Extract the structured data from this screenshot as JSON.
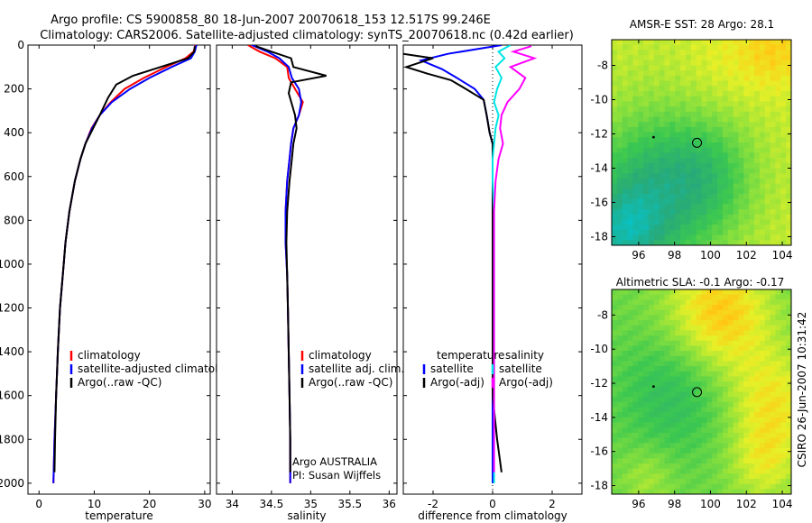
{
  "header": {
    "title_line1": "Argo profile: CS 5900858_80 18-Jun-2007 20070618_153 12.517S 99.246E",
    "title_line2": "Climatology: CARS2006. Satellite-adjusted climatology: synTS_20070618.nc (0.42d earlier)"
  },
  "side_label": "CSIRO 26-Jun-2007 10:31:42",
  "colors": {
    "climatology": "#ff0000",
    "satellite": "#0000ff",
    "argo": "#000000",
    "salinity_satellite": "#00e5e5",
    "salinity_argo": "#ff00ff"
  },
  "chart_data": [
    {
      "type": "line",
      "id": "temperature",
      "xlabel": "temperature",
      "ylabel": "",
      "xlim": [
        -2,
        31
      ],
      "ylim": [
        2050,
        0
      ],
      "xticks": [
        0,
        10,
        20,
        30
      ],
      "yticks": [
        0,
        200,
        400,
        600,
        800,
        1000,
        1200,
        1400,
        1600,
        1800,
        2000
      ],
      "legend": [
        "climatology",
        "satellite-adjusted climatology",
        "Argo(..raw -QC)"
      ],
      "series": [
        {
          "name": "climatology",
          "color": "#ff0000",
          "x": [
            28.3,
            28.0,
            26.5,
            23.0,
            19.0,
            15.5,
            13.0,
            11.0,
            9.5,
            8.4,
            7.5,
            6.5,
            5.5,
            4.8,
            4.3,
            3.8,
            3.4,
            3.1,
            2.8,
            2.6
          ],
          "y": [
            0,
            30,
            60,
            100,
            150,
            200,
            260,
            320,
            380,
            450,
            520,
            620,
            760,
            900,
            1050,
            1200,
            1400,
            1600,
            1800,
            2000
          ]
        },
        {
          "name": "satellite-adjusted climatology",
          "color": "#0000ff",
          "x": [
            28.5,
            28.2,
            27.5,
            24.0,
            20.0,
            16.5,
            13.2,
            11.0,
            9.6,
            8.4,
            7.5,
            6.5,
            5.5,
            4.8,
            4.3,
            3.8,
            3.4,
            3.1,
            2.8,
            2.6
          ],
          "y": [
            0,
            30,
            60,
            100,
            150,
            200,
            260,
            320,
            380,
            450,
            520,
            620,
            760,
            900,
            1050,
            1200,
            1400,
            1600,
            1800,
            2000
          ]
        },
        {
          "name": "Argo(..raw -QC)",
          "color": "#000000",
          "x": [
            28.2,
            28.1,
            27.0,
            22.0,
            17.0,
            14.0,
            12.5,
            11.0,
            9.8,
            8.4,
            7.5,
            6.5,
            5.5,
            4.8,
            4.3,
            3.8,
            3.4,
            3.1,
            2.9,
            2.8
          ],
          "y": [
            5,
            30,
            60,
            100,
            140,
            180,
            240,
            320,
            380,
            450,
            520,
            620,
            760,
            900,
            1050,
            1200,
            1400,
            1600,
            1800,
            1950
          ]
        }
      ]
    },
    {
      "type": "line",
      "id": "salinity",
      "xlabel": "salinity",
      "ylabel": "",
      "xlim": [
        33.8,
        36.1
      ],
      "ylim": [
        2050,
        0
      ],
      "xticks": [
        34,
        34.5,
        35,
        35.5,
        36
      ],
      "legend": [
        "climatology",
        "satellite adj. clim.",
        "Argo(..raw -QC)"
      ],
      "annotations": [
        "Argo AUSTRALIA",
        "PI: Susan Wijffels"
      ],
      "series": [
        {
          "name": "climatology",
          "color": "#ff0000",
          "x": [
            34.2,
            34.35,
            34.55,
            34.7,
            34.72,
            34.8,
            34.9,
            34.85,
            34.78,
            34.75,
            34.73,
            34.7,
            34.68,
            34.68,
            34.7,
            34.71,
            34.72,
            34.73,
            34.74,
            34.74
          ],
          "y": [
            0,
            30,
            60,
            100,
            150,
            200,
            260,
            320,
            380,
            450,
            520,
            620,
            760,
            900,
            1050,
            1200,
            1400,
            1600,
            1800,
            2000
          ]
        },
        {
          "name": "satellite adj. clim.",
          "color": "#0000ff",
          "x": [
            34.25,
            34.45,
            34.6,
            34.72,
            34.76,
            34.85,
            34.88,
            34.85,
            34.78,
            34.75,
            34.73,
            34.7,
            34.68,
            34.68,
            34.7,
            34.71,
            34.72,
            34.73,
            34.74,
            34.74
          ],
          "y": [
            0,
            30,
            60,
            100,
            150,
            200,
            260,
            320,
            380,
            450,
            520,
            620,
            760,
            900,
            1050,
            1200,
            1400,
            1600,
            1800,
            2000
          ]
        },
        {
          "name": "Argo(..raw -QC)",
          "color": "#000000",
          "x": [
            34.3,
            34.5,
            34.75,
            34.78,
            35.2,
            34.75,
            34.72,
            34.8,
            34.82,
            34.78,
            34.76,
            34.73,
            34.7,
            34.69,
            34.7,
            34.71,
            34.72,
            34.73,
            34.74,
            34.74
          ],
          "y": [
            5,
            30,
            60,
            100,
            140,
            170,
            220,
            320,
            380,
            450,
            520,
            620,
            760,
            900,
            1050,
            1200,
            1400,
            1600,
            1800,
            1950
          ]
        }
      ]
    },
    {
      "type": "line",
      "id": "difference",
      "xlabel": "difference from climatology",
      "ylabel": "",
      "xlim": [
        -3,
        3
      ],
      "ylim": [
        2050,
        0
      ],
      "xticks": [
        -2,
        0,
        2
      ],
      "legend": [
        "temperature",
        "satellite",
        "Argo(-adj)",
        "salinity",
        "satellite",
        "Argo(-adj)"
      ],
      "series": [
        {
          "name": "temperature satellite",
          "color": "#0000ff",
          "x": [
            0.3,
            -1.5,
            -2.4,
            -1.7,
            -1.2,
            -0.6,
            -0.3,
            -0.2,
            -0.1,
            0.0,
            0.0,
            0.0,
            0.0,
            0.0,
            0.0,
            0.0,
            0.0,
            0.0,
            0.0,
            0.0
          ],
          "y": [
            0,
            40,
            70,
            110,
            150,
            200,
            250,
            320,
            400,
            450,
            520,
            620,
            760,
            900,
            1050,
            1200,
            1400,
            1600,
            1800,
            2000
          ]
        },
        {
          "name": "temperature Argo(-adj)",
          "color": "#000000",
          "x": [
            -3.0,
            -2.0,
            -2.9,
            -2.2,
            -1.4,
            -0.9,
            -0.3,
            -0.2,
            -0.1,
            0.0,
            0.0,
            0.0,
            0.0,
            0.0,
            0.0,
            0.0,
            0.0,
            0.0,
            0.15,
            0.3
          ],
          "y": [
            40,
            60,
            100,
            130,
            160,
            200,
            250,
            320,
            400,
            450,
            520,
            620,
            760,
            900,
            1050,
            1200,
            1400,
            1600,
            1800,
            1950
          ]
        },
        {
          "name": "salinity satellite",
          "color": "#00e5e5",
          "x": [
            0.6,
            0.2,
            0.4,
            0.1,
            0.3,
            0.15,
            0.05,
            0.2,
            0.1,
            0.05,
            0.0,
            0.0,
            0.05,
            0.05,
            0.05,
            0.05,
            0.05,
            0.05,
            0.05,
            0.05
          ],
          "y": [
            0,
            30,
            60,
            100,
            150,
            200,
            260,
            320,
            380,
            450,
            520,
            620,
            760,
            900,
            1050,
            1200,
            1400,
            1600,
            1800,
            2000
          ]
        },
        {
          "name": "salinity Argo(-adj)",
          "color": "#ff00ff",
          "x": [
            1.3,
            0.7,
            1.4,
            0.6,
            1.1,
            0.9,
            0.5,
            0.3,
            0.25,
            0.35,
            0.2,
            0.1,
            0.05,
            0.05,
            0.05,
            0.05,
            0.05,
            0.05,
            0.05,
            0.05
          ],
          "y": [
            5,
            30,
            60,
            100,
            150,
            200,
            260,
            320,
            380,
            450,
            520,
            620,
            760,
            900,
            1050,
            1200,
            1400,
            1600,
            1800,
            1950
          ]
        }
      ]
    },
    {
      "type": "heatmap",
      "id": "sst_map",
      "title": "AMSR-E SST: 28  Argo: 28.1",
      "xlim": [
        94.5,
        104.5
      ],
      "ylim": [
        -18.5,
        -6.5
      ],
      "xticks": [
        96,
        98,
        100,
        102,
        104
      ],
      "yticks": [
        -8,
        -10,
        -12,
        -14,
        -16,
        -18
      ],
      "markers": [
        {
          "kind": "circle",
          "lon": 99.25,
          "lat": -12.52
        },
        {
          "kind": "dot",
          "lon": 96.83,
          "lat": -12.19
        }
      ]
    },
    {
      "type": "heatmap",
      "id": "sla_map",
      "title": "Altimetric SLA: -0.1  Argo: -0.17",
      "xlim": [
        94.5,
        104.5
      ],
      "ylim": [
        -18.5,
        -6.5
      ],
      "xticks": [
        96,
        98,
        100,
        102,
        104
      ],
      "yticks": [
        -8,
        -10,
        -12,
        -14,
        -16,
        -18
      ],
      "markers": [
        {
          "kind": "circle",
          "lon": 99.25,
          "lat": -12.52
        },
        {
          "kind": "dot",
          "lon": 96.83,
          "lat": -12.19
        }
      ]
    }
  ]
}
